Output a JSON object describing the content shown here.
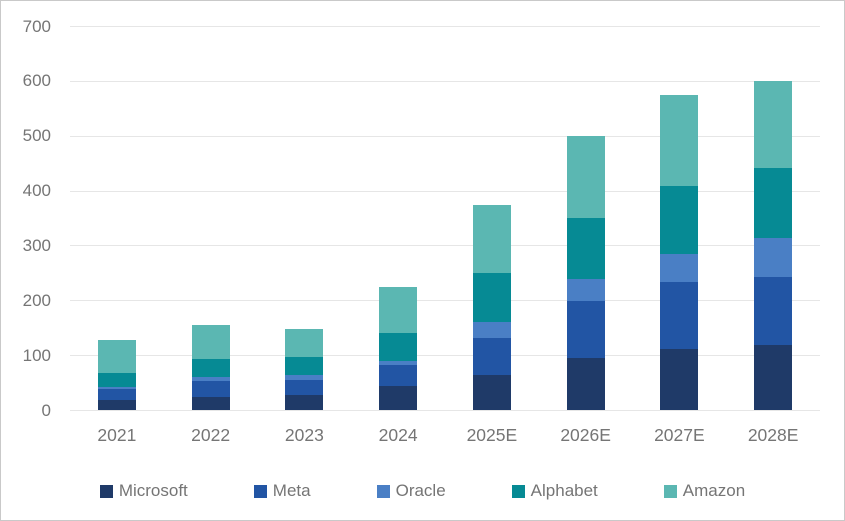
{
  "chart_data": {
    "type": "bar",
    "stacked": true,
    "title": "",
    "xlabel": "",
    "ylabel": "",
    "ylim": [
      0,
      700
    ],
    "yticks": [
      0,
      100,
      200,
      300,
      400,
      500,
      600,
      700
    ],
    "grid": true,
    "legend_position": "bottom",
    "categories": [
      "2021",
      "2022",
      "2023",
      "2024",
      "2025E",
      "2026E",
      "2027E",
      "2028E"
    ],
    "series": [
      {
        "name": "Microsoft",
        "color": "#1f3a68",
        "values": [
          20,
          24,
          28,
          45,
          64,
          95,
          112,
          119
        ]
      },
      {
        "name": "Meta",
        "color": "#2255a4",
        "values": [
          20,
          30,
          27,
          38,
          68,
          105,
          123,
          124
        ]
      },
      {
        "name": "Oracle",
        "color": "#4a7fc5",
        "values": [
          3,
          7,
          10,
          8,
          30,
          40,
          50,
          71
        ]
      },
      {
        "name": "Alphabet",
        "color": "#068a94",
        "values": [
          25,
          33,
          32,
          50,
          88,
          110,
          125,
          128
        ]
      },
      {
        "name": "Amazon",
        "color": "#5bb7b2",
        "values": [
          60,
          61,
          52,
          84,
          125,
          150,
          165,
          158
        ]
      }
    ],
    "totals": [
      128,
      155,
      149,
      225,
      375,
      500,
      575,
      600
    ]
  },
  "colors": {
    "grid": "#e6e6e6",
    "axis_text": "#757575",
    "frame_border": "#c9c9c9",
    "background": "#ffffff"
  }
}
